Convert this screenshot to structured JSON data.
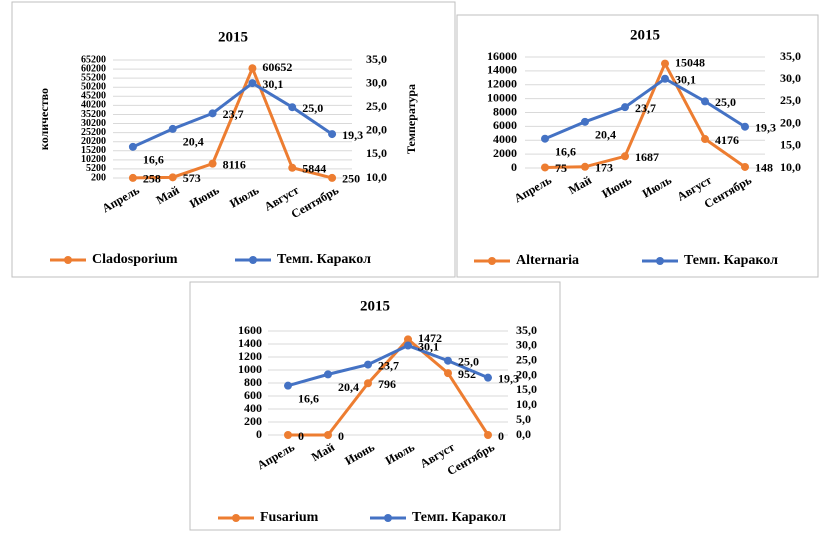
{
  "chart_data": [
    {
      "type": "line",
      "title": "2015",
      "ylabel": "количество",
      "y2label": "Температура",
      "categories": [
        "Апрель",
        "Май",
        "Июнь",
        "Июль",
        "Август",
        "Сентябрь"
      ],
      "series": [
        {
          "name": "Cladosporium",
          "color": "#ED7D31",
          "values": [
            258,
            573,
            8116,
            60652,
            5844,
            250
          ]
        },
        {
          "name": "Темп. Каракол",
          "color": "#4472C4",
          "axis": "y2",
          "values": [
            16.6,
            20.4,
            23.7,
            30.1,
            25.0,
            19.3
          ],
          "value_labels": [
            "16,6",
            "20,4",
            "23,7",
            "30,1",
            "25,0",
            "19,3"
          ]
        }
      ],
      "ylim": [
        200,
        65200
      ],
      "yticks": [
        200,
        5200,
        10200,
        15200,
        20200,
        25200,
        30200,
        35200,
        40200,
        45200,
        50200,
        55200,
        60200,
        65200
      ],
      "y2lim": [
        10,
        35
      ],
      "y2ticks": [
        {
          "value": 10,
          "label": "10,0"
        },
        {
          "value": 15,
          "label": "15,0"
        },
        {
          "value": 20,
          "label": "20,0"
        },
        {
          "value": 25,
          "label": "25,0"
        },
        {
          "value": 30,
          "label": "30,0"
        },
        {
          "value": 35,
          "label": "35,0"
        }
      ],
      "grid": true,
      "legend": "bottom"
    },
    {
      "type": "line",
      "title": "2015",
      "categories": [
        "Апрель",
        "Май",
        "Июнь",
        "Июль",
        "Август",
        "Сентябрь"
      ],
      "series": [
        {
          "name": "Alternaria",
          "color": "#ED7D31",
          "values": [
            75,
            173,
            1687,
            15048,
            4176,
            148
          ]
        },
        {
          "name": "Темп. Каракол",
          "color": "#4472C4",
          "axis": "y2",
          "values": [
            16.6,
            20.4,
            23.7,
            30.1,
            25.0,
            19.3
          ],
          "value_labels": [
            "16,6",
            "20,4",
            "23,7",
            "30,1",
            "25,0",
            "19,3"
          ]
        }
      ],
      "ylim": [
        0,
        16000
      ],
      "yticks": [
        0,
        2000,
        4000,
        6000,
        8000,
        10000,
        12000,
        14000,
        16000
      ],
      "y2lim": [
        10,
        35
      ],
      "y2ticks": [
        {
          "value": 10,
          "label": "10,0"
        },
        {
          "value": 15,
          "label": "15,0"
        },
        {
          "value": 20,
          "label": "20,0"
        },
        {
          "value": 25,
          "label": "25,0"
        },
        {
          "value": 30,
          "label": "30,0"
        },
        {
          "value": 35,
          "label": "35,0"
        }
      ],
      "grid": true,
      "legend": "bottom"
    },
    {
      "type": "line",
      "title": "2015",
      "categories": [
        "Апрель",
        "Май",
        "Июнь",
        "Июль",
        "Август",
        "Сентябрь"
      ],
      "series": [
        {
          "name": "Fusarium",
          "color": "#ED7D31",
          "values": [
            0,
            0,
            796,
            1472,
            952,
            0
          ]
        },
        {
          "name": "Темп. Каракол",
          "color": "#4472C4",
          "axis": "y2",
          "values": [
            16.6,
            20.4,
            23.7,
            30.1,
            25.0,
            19.3
          ],
          "value_labels": [
            "16,6",
            "20,4",
            "23,7",
            "30,1",
            "25,0",
            "19,3"
          ]
        }
      ],
      "ylim": [
        0,
        1600
      ],
      "yticks": [
        0,
        200,
        400,
        600,
        800,
        1000,
        1200,
        1400,
        1600
      ],
      "y2lim": [
        0,
        35
      ],
      "y2ticks": [
        {
          "value": 0,
          "label": "0,0"
        },
        {
          "value": 5,
          "label": "5,0"
        },
        {
          "value": 10,
          "label": "10,0"
        },
        {
          "value": 15,
          "label": "15,0"
        },
        {
          "value": 20,
          "label": "20,0"
        },
        {
          "value": 25,
          "label": "25,0"
        },
        {
          "value": 30,
          "label": "30,0"
        },
        {
          "value": 35,
          "label": "35,0"
        }
      ],
      "grid": true,
      "legend": "bottom"
    }
  ]
}
